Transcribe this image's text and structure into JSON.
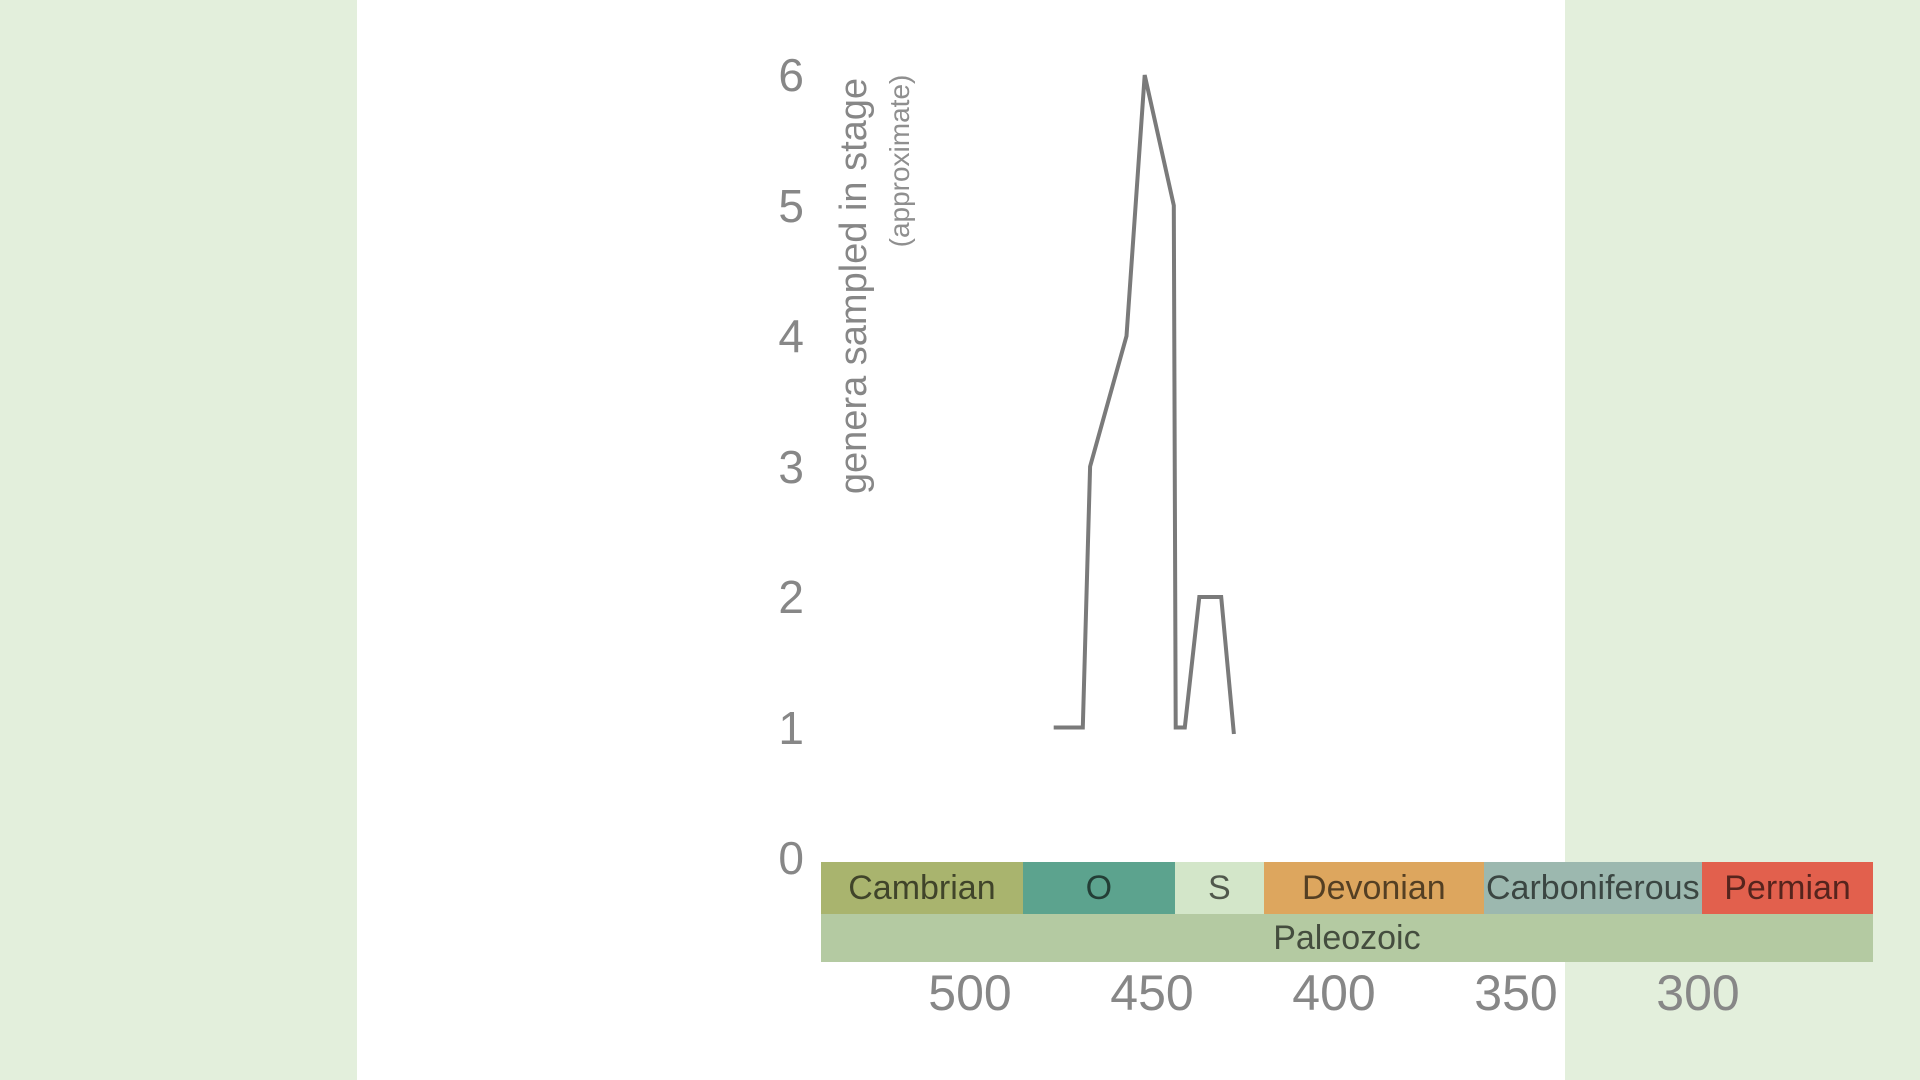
{
  "page": {
    "background_color": "#e3efdc",
    "panel_color": "#ffffff"
  },
  "chart_data": {
    "type": "line",
    "title": "",
    "ylabel": "genera sampled in stage",
    "ylabel_note": "(approximate)",
    "xlabel": "",
    "grid": false,
    "legend": false,
    "axis_lines": false,
    "x_axis": {
      "unit": "Ma (millions of years ago, decreasing to the right)",
      "ticks": [
        500,
        450,
        400,
        350,
        300
      ],
      "range": [
        541,
        251.9
      ],
      "tick_color": "#878787"
    },
    "y_axis": {
      "ticks": [
        0,
        1,
        2,
        3,
        4,
        5,
        6
      ],
      "range": [
        0,
        6
      ],
      "tick_color": "#878787"
    },
    "series": [
      {
        "name": "genera sampled in stage (approximate)",
        "color": "#7a7a7a",
        "points_format": "[age_Ma, genera]",
        "points": [
          [
            477,
            1
          ],
          [
            469,
            1
          ],
          [
            467,
            3
          ],
          [
            457,
            4
          ],
          [
            452,
            6
          ],
          [
            444,
            5
          ],
          [
            443.5,
            1
          ],
          [
            441,
            1
          ],
          [
            437,
            2
          ],
          [
            431,
            2
          ],
          [
            427.5,
            0.95
          ]
        ]
      }
    ],
    "timescale": {
      "periods": [
        {
          "label": "Cambrian",
          "start": 541,
          "end": 485.4,
          "color": "#a9b46e"
        },
        {
          "label": "O",
          "start": 485.4,
          "end": 443.8,
          "color": "#5ca38e"
        },
        {
          "label": "S",
          "start": 443.8,
          "end": 419.2,
          "color": "#d3e6c9"
        },
        {
          "label": "Devonian",
          "start": 419.2,
          "end": 358.9,
          "color": "#dda65e"
        },
        {
          "label": "Carboniferous",
          "start": 358.9,
          "end": 298.9,
          "color": "#9cb8af"
        },
        {
          "label": "Permian",
          "start": 298.9,
          "end": 251.9,
          "color": "#e2604d"
        }
      ],
      "eras": [
        {
          "label": "Paleozoic",
          "start": 541,
          "end": 251.9,
          "color": "#b4caa2"
        }
      ]
    }
  }
}
